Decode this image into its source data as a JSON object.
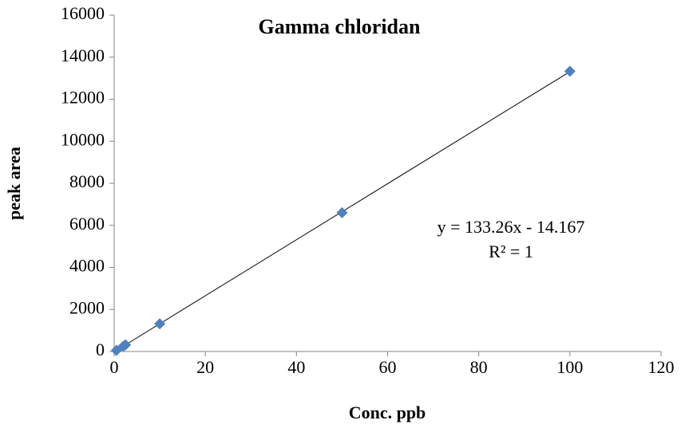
{
  "chart_data": {
    "type": "scatter",
    "title": "Gamma chloridan",
    "x_label": "Conc. ppb",
    "y_label": "peak area",
    "series": [
      {
        "name": "peak area",
        "color": "#4f81bd",
        "x": [
          0.5,
          2,
          2.5,
          10,
          50,
          100
        ],
        "values": [
          52,
          252,
          319,
          1318,
          6600,
          13330
        ]
      }
    ],
    "trendline": {
      "slope": 133.26,
      "intercept": -14.167,
      "equation": "y = 133.26x - 14.167",
      "r_squared_label": "R² = 1",
      "color": "#000000"
    },
    "xlim": [
      0,
      120
    ],
    "xticks": [
      0,
      20,
      40,
      60,
      80,
      100,
      120
    ],
    "ylim": [
      0,
      16000
    ],
    "yticks": [
      0,
      2000,
      4000,
      6000,
      8000,
      10000,
      12000,
      14000,
      16000
    ],
    "grid": false
  }
}
